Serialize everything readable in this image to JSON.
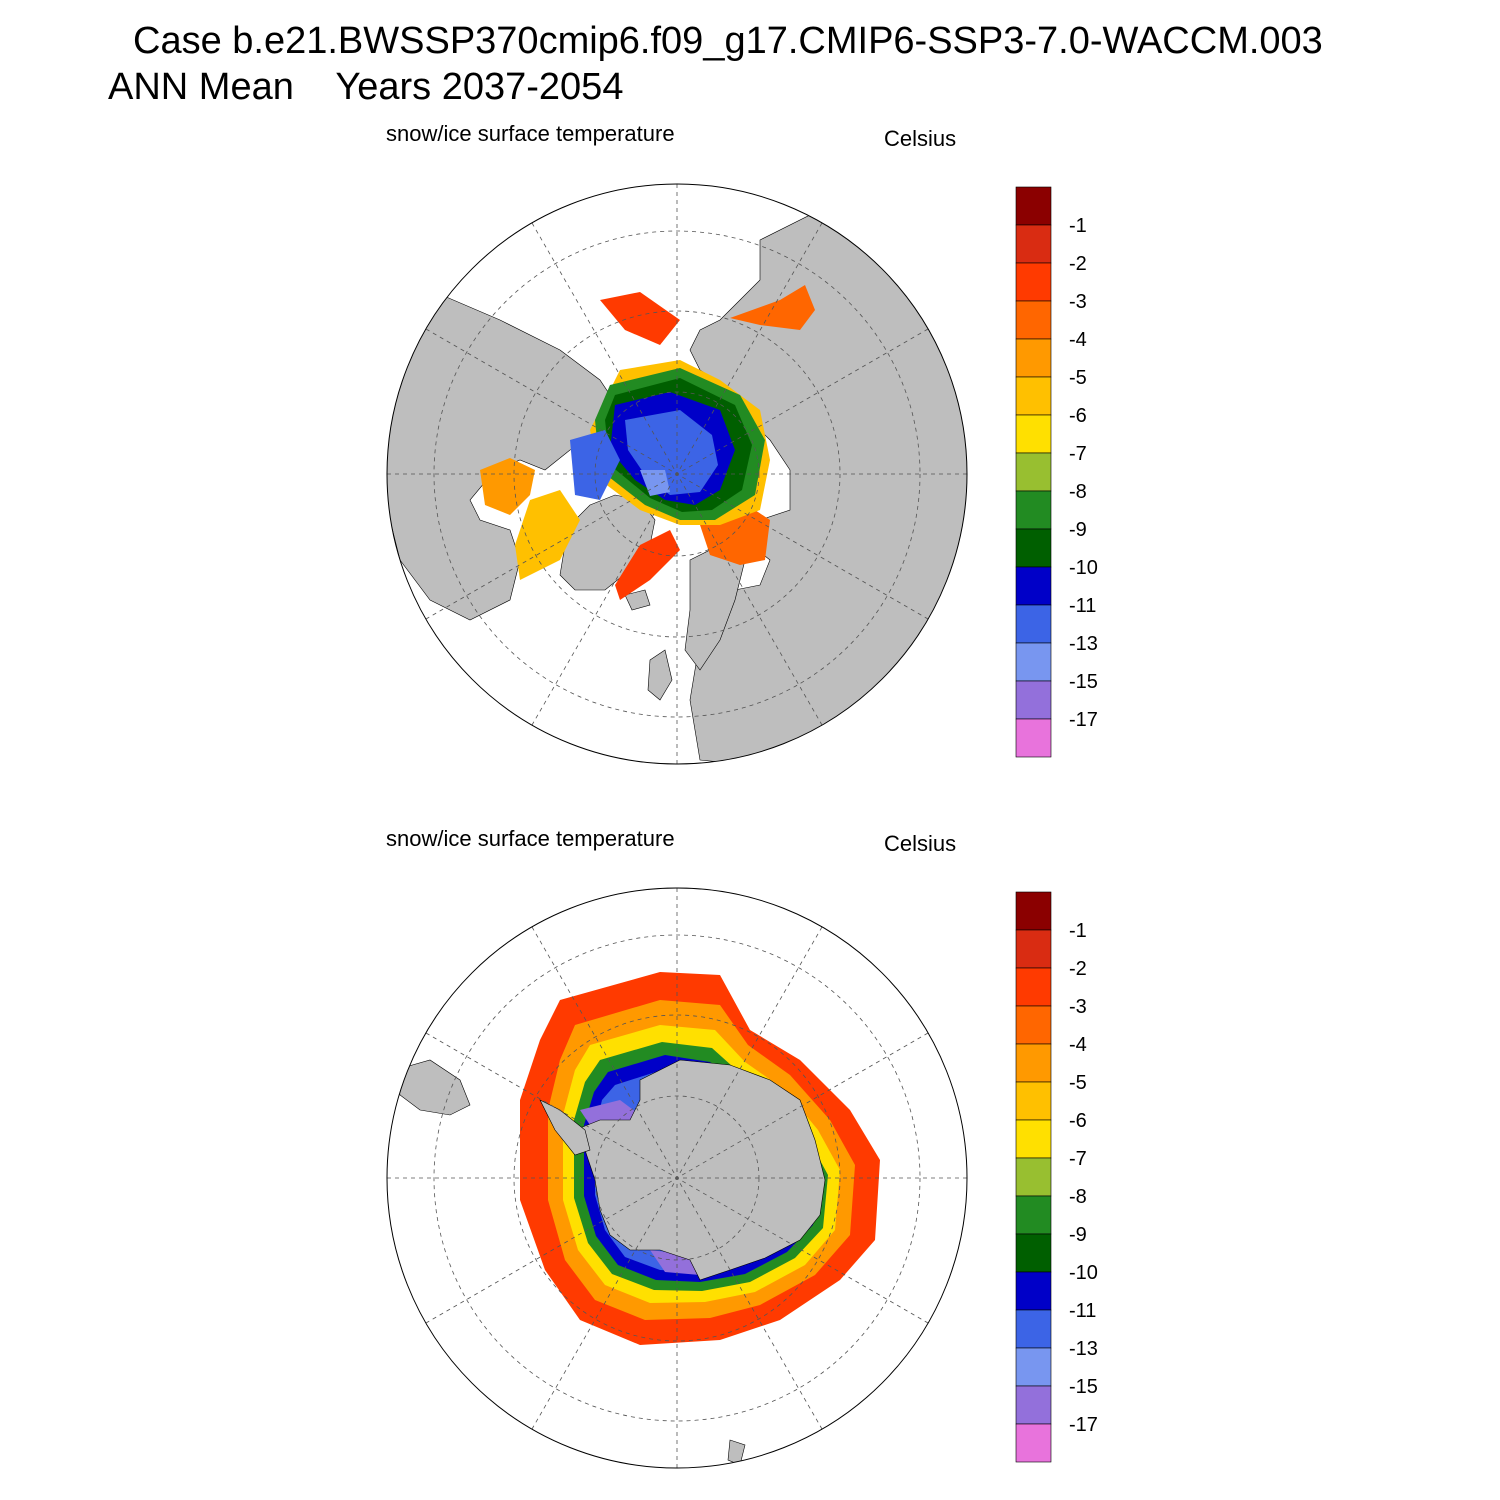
{
  "header": {
    "line1": "Case b.e21.BWSSP370cmip6.f09_g17.CMIP6-SSP3-7.0-WACCM.003",
    "line2": "ANN Mean    Years 2037-2054"
  },
  "panels": [
    {
      "id": "north",
      "variable": "snow/ice surface temperature",
      "units": "Celsius",
      "hemisphere": "north"
    },
    {
      "id": "south",
      "variable": "snow/ice surface temperature",
      "units": "Celsius",
      "hemisphere": "south"
    }
  ],
  "colorbar": {
    "labels": [
      "-1",
      "-2",
      "-3",
      "-4",
      "-5",
      "-6",
      "-7",
      "-8",
      "-9",
      "-10",
      "-11",
      "-13",
      "-15",
      "-17"
    ],
    "colors": [
      "#8b0000",
      "#d92c12",
      "#ff3a00",
      "#ff6600",
      "#ff9900",
      "#ffc000",
      "#ffe000",
      "#98bf30",
      "#228b22",
      "#005f00",
      "#0000c8",
      "#3c64e6",
      "#7896f0",
      "#9370db",
      "#e873dc"
    ]
  },
  "colors": {
    "land": "#bebebe",
    "ocean": "#ffffff"
  }
}
